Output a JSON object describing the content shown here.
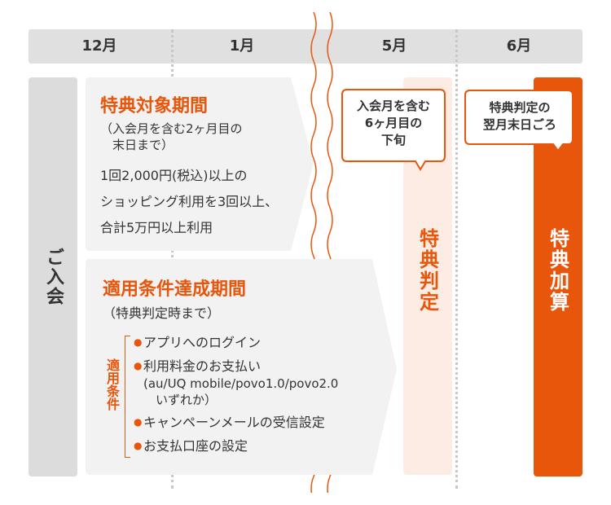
{
  "timeline": {
    "months": [
      "12月",
      "1月",
      "5月",
      "6月"
    ]
  },
  "join": {
    "label": "ご入会"
  },
  "benefit_period": {
    "title": "特典対象期間",
    "subtitle_lines": [
      "（入会月を含む2ヶ月目の",
      "　末日まで）"
    ],
    "body_lines": [
      "1回2,000円(税込)以上の",
      "ショッピング利用を3回以上、",
      "合計5万円以上利用"
    ]
  },
  "condition_period": {
    "title": "適用条件達成期間",
    "subtitle": "（特典判定時まで）",
    "conditions_label": "適用条件",
    "conditions": [
      {
        "text": "アプリへのログイン"
      },
      {
        "text": "利用料金のお支払い",
        "note_lines": [
          "(au/UQ mobile/povo1.0/povo2.0",
          "　いずれか）"
        ]
      },
      {
        "text": "キャンペーンメールの受信設定"
      },
      {
        "text": "お支払口座の設定"
      }
    ]
  },
  "judgement": {
    "label": "特典判定",
    "callout_lines": [
      "入会月を含む",
      "6ヶ月目の",
      "下旬"
    ]
  },
  "grant": {
    "label": "特典加算",
    "callout_lines": [
      "特典判定の",
      "翌月末日ごろ"
    ]
  },
  "colors": {
    "accent": "#e8560c",
    "pale": "#fdece3",
    "gray": "#e0e0e0",
    "box": "#f2f2f2"
  }
}
